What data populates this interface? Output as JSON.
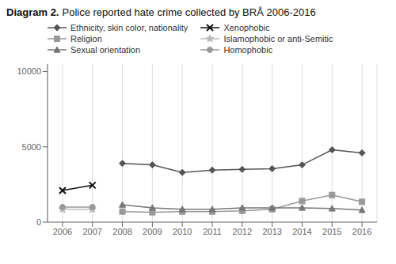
{
  "chart_data": {
    "type": "line",
    "title": "Diagram 2.",
    "subtitle": "Police reported hate crime collected by BRÅ 2006-2016",
    "series": [
      {
        "name": "Ethnicity, skin color, nationality",
        "color": "#555555",
        "marker": "diamond",
        "x": [
          2008,
          2009,
          2010,
          2011,
          2012,
          2013,
          2014,
          2015,
          2016
        ],
        "values": [
          3900,
          3800,
          3300,
          3450,
          3500,
          3550,
          3800,
          4800,
          4600
        ]
      },
      {
        "name": "Religion",
        "color": "#999999",
        "marker": "square",
        "x": [
          2008,
          2009,
          2010,
          2011,
          2012,
          2013,
          2014,
          2015,
          2016
        ],
        "values": [
          700,
          650,
          700,
          700,
          750,
          850,
          1400,
          1800,
          1350
        ]
      },
      {
        "name": "Sexual orientation",
        "color": "#777777",
        "marker": "triangle",
        "x": [
          2008,
          2009,
          2010,
          2011,
          2012,
          2013,
          2014,
          2015,
          2016
        ],
        "values": [
          1150,
          950,
          850,
          850,
          950,
          950,
          950,
          900,
          800
        ]
      },
      {
        "name": "Xenophobic",
        "color": "#111111",
        "marker": "x",
        "x": [
          2006,
          2007
        ],
        "values": [
          2100,
          2450
        ]
      },
      {
        "name": "Islamophobic or anti-Semitic",
        "color": "#bbbbbb",
        "marker": "star",
        "x": [
          2006,
          2007
        ],
        "values": [
          850,
          850
        ]
      },
      {
        "name": "Homophobic",
        "color": "#999999",
        "marker": "circle",
        "x": [
          2006,
          2007
        ],
        "values": [
          1000,
          1000
        ]
      }
    ],
    "xlim": [
      2005.5,
      2016.5
    ],
    "xticks": [
      2006,
      2007,
      2008,
      2009,
      2010,
      2011,
      2012,
      2013,
      2014,
      2015,
      2016
    ],
    "ylim": [
      0,
      10500
    ],
    "yticks": [
      0,
      5000,
      10000
    ],
    "grid": true,
    "legend": "top"
  }
}
